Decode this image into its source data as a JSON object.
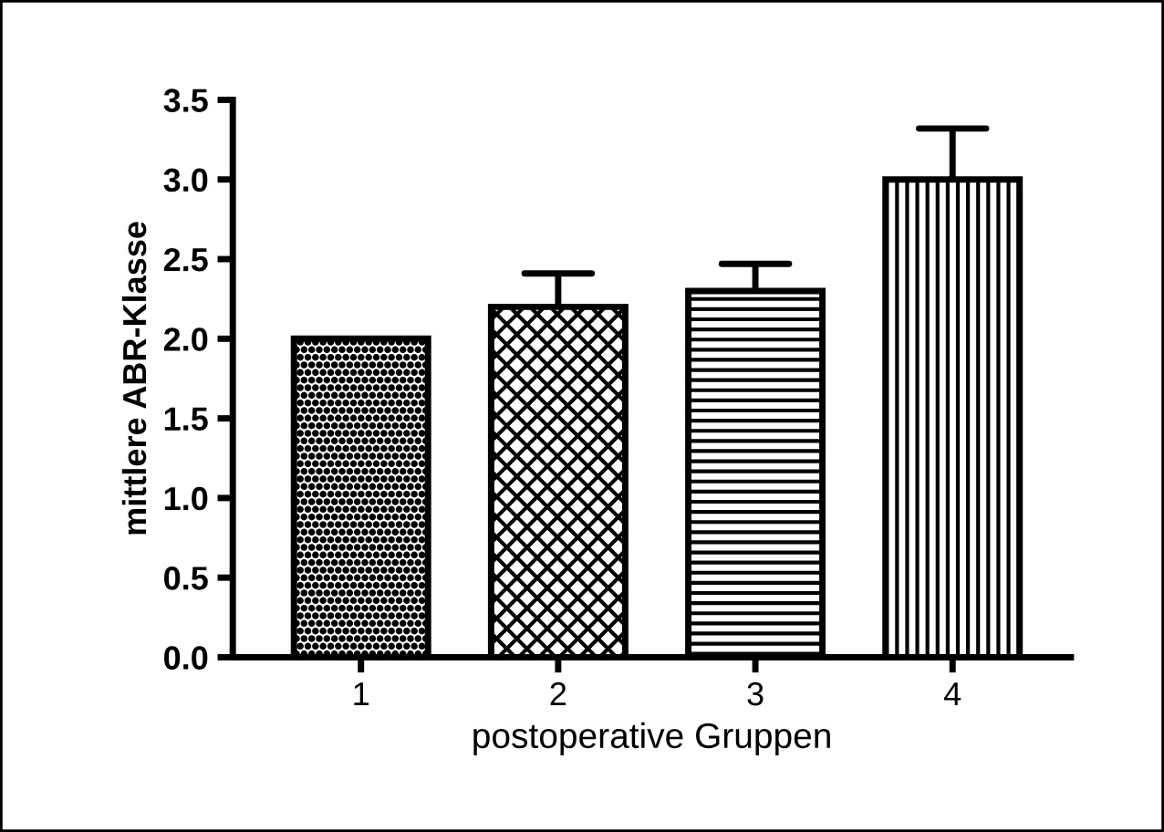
{
  "chart_data": {
    "type": "bar",
    "xlabel": "postoperative Gruppen",
    "ylabel": "mittlere ABR-Klasse",
    "categories": [
      "1",
      "2",
      "3",
      "4"
    ],
    "values": [
      2.0,
      2.2,
      2.3,
      3.0
    ],
    "errors": [
      null,
      [
        2.2,
        2.41
      ],
      [
        2.3,
        2.47
      ],
      [
        3.0,
        3.32
      ]
    ],
    "color": "#000000",
    "ylim": [
      0,
      3.5
    ],
    "yticks": [
      {
        "value": 0,
        "label": "0.0"
      },
      0.5,
      {
        "value": 1,
        "label": "1.0"
      },
      1.5,
      {
        "value": 2,
        "label": "2.0"
      },
      2.5,
      {
        "value": 3,
        "label": "3.0"
      },
      3.5
    ],
    "grid": false,
    "legend": false
  }
}
